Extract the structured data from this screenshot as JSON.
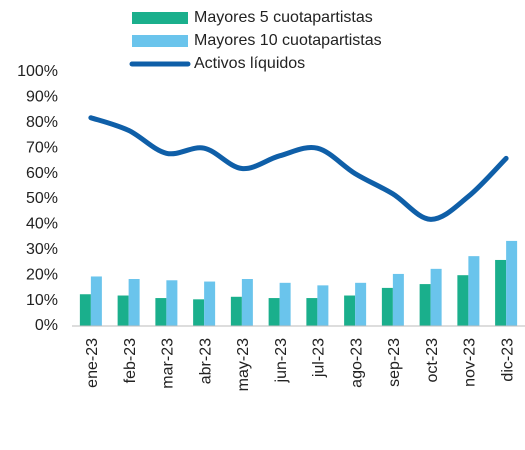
{
  "chart_data": {
    "type": "bar_line",
    "categories": [
      "ene-23",
      "feb-23",
      "mar-23",
      "abr-23",
      "may-23",
      "jun-23",
      "jul-23",
      "ago-23",
      "sep-23",
      "oct-23",
      "nov-23",
      "dic-23"
    ],
    "series": [
      {
        "name": "Mayores 5 cuotapartistas",
        "type": "bar",
        "color": "#1aaf8c",
        "values": [
          12.5,
          12,
          11,
          10.5,
          11.5,
          11,
          11,
          12,
          15,
          16.5,
          20,
          26
        ]
      },
      {
        "name": "Mayores 10 cuotapartistas",
        "type": "bar",
        "color": "#6ac4ec",
        "values": [
          19.5,
          18.5,
          18,
          17.5,
          18.5,
          17,
          16,
          17,
          20.5,
          22.5,
          27.5,
          33.5
        ]
      },
      {
        "name": "Activos líquidos",
        "type": "line",
        "color": "#0f5fa8",
        "values": [
          82,
          77,
          68,
          70,
          62,
          67,
          70,
          60,
          52,
          42,
          51,
          66
        ]
      }
    ],
    "ylim": [
      0,
      100
    ],
    "yticks": [
      {
        "value": 0,
        "label": "0%"
      },
      {
        "value": 10,
        "label": "10%"
      },
      {
        "value": 20,
        "label": "20%"
      },
      {
        "value": 30,
        "label": "30%"
      },
      {
        "value": 40,
        "label": "40%"
      },
      {
        "value": 50,
        "label": "50%"
      },
      {
        "value": 60,
        "label": "60%"
      },
      {
        "value": 70,
        "label": "70%"
      },
      {
        "value": 80,
        "label": "80%"
      },
      {
        "value": 90,
        "label": "90%"
      },
      {
        "value": 100,
        "label": "100%"
      }
    ],
    "grid": false,
    "legend": "top"
  }
}
